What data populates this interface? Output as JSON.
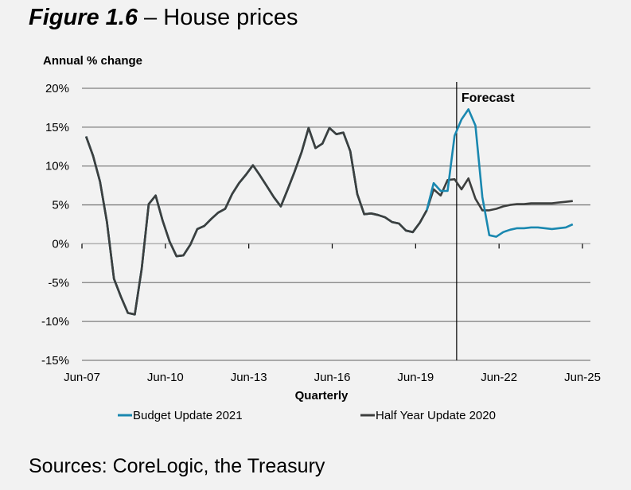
{
  "figure": {
    "label": "Figure 1.6",
    "dash": " – ",
    "title": "House prices",
    "sources": "Sources: CoreLogic, the Treasury"
  },
  "chart_data": {
    "type": "line",
    "title": "House prices",
    "ylabel": "Annual % change",
    "xlabel": "Quarterly",
    "ylim": [
      -15,
      20
    ],
    "yticks": [
      20,
      15,
      10,
      5,
      0,
      -5,
      -10,
      -15
    ],
    "ytick_labels": [
      "20%",
      "15%",
      "10%",
      "5%",
      "0%",
      "-5%",
      "-10%",
      "-15%"
    ],
    "xtick_labels": [
      "Jun-07",
      "Jun-10",
      "Jun-13",
      "Jun-16",
      "Jun-19",
      "Jun-22",
      "Jun-25"
    ],
    "x_start": "Sep-07",
    "x_end": "Jun-25",
    "frequency": "quarterly",
    "grid": true,
    "legend_position": "bottom",
    "annotations": [
      {
        "text": "Forecast",
        "x": "Dec-20"
      }
    ],
    "series": [
      {
        "name": "Budget Update 2021",
        "color": "#1a88b0",
        "start": "Sep-07",
        "values": [
          13.8,
          11.3,
          8.0,
          2.8,
          -4.5,
          -6.8,
          -8.9,
          -9.1,
          -3.2,
          5.1,
          6.2,
          3.0,
          0.3,
          -1.6,
          -1.5,
          -0.1,
          1.9,
          2.3,
          3.2,
          4.0,
          4.5,
          6.4,
          7.8,
          8.9,
          10.1,
          8.8,
          7.4,
          6.0,
          4.8,
          7.0,
          9.3,
          11.8,
          14.9,
          12.3,
          12.9,
          14.9,
          14.1,
          14.3,
          11.9,
          6.4,
          3.8,
          3.9,
          3.7,
          3.4,
          2.8,
          2.6,
          1.7,
          1.5,
          2.7,
          4.3,
          7.8,
          6.8,
          6.8,
          13.9,
          16.0,
          17.3,
          15.2,
          6.0,
          1.1,
          0.9,
          1.5,
          1.8,
          2.0,
          2.0,
          2.1,
          2.1,
          2.0,
          1.9,
          2.0,
          2.1,
          2.5
        ]
      },
      {
        "name": "Half Year Update 2020",
        "color": "#3d3f3e",
        "start": "Sep-07",
        "values": [
          13.8,
          11.3,
          8.0,
          2.8,
          -4.5,
          -6.8,
          -8.9,
          -9.1,
          -3.2,
          5.1,
          6.2,
          3.0,
          0.3,
          -1.6,
          -1.5,
          -0.1,
          1.9,
          2.3,
          3.2,
          4.0,
          4.5,
          6.4,
          7.8,
          8.9,
          10.1,
          8.8,
          7.4,
          6.0,
          4.8,
          7.0,
          9.3,
          11.8,
          14.9,
          12.3,
          12.9,
          14.9,
          14.1,
          14.3,
          11.9,
          6.4,
          3.8,
          3.9,
          3.7,
          3.4,
          2.8,
          2.6,
          1.7,
          1.5,
          2.7,
          4.3,
          7.0,
          6.2,
          8.2,
          8.3,
          7.0,
          8.4,
          5.8,
          4.3,
          4.3,
          4.5,
          4.8,
          5.0,
          5.1,
          5.1,
          5.2,
          5.2,
          5.2,
          5.2,
          5.3,
          5.4,
          5.5
        ]
      }
    ]
  }
}
